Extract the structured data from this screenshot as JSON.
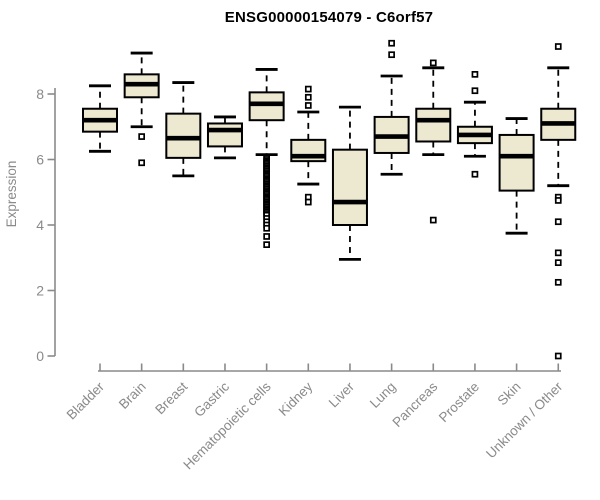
{
  "chart_data": {
    "type": "boxplot",
    "title": "ENSG00000154079 - C6orf57",
    "ylabel": "Expression",
    "xlabel": "",
    "ylim": [
      0,
      9.8
    ],
    "yticks": [
      0,
      2,
      4,
      6,
      8
    ],
    "grid": false,
    "legend": "none",
    "box_fill_color": "#EDE8D0",
    "axis_color": "#8a8a8a",
    "categories": [
      "Bladder",
      "Brain",
      "Breast",
      "Gastric",
      "Hematopoietic cells",
      "Kidney",
      "Liver",
      "Lung",
      "Pancreas",
      "Prostate",
      "Skin",
      "Unknown / Other"
    ],
    "boxes": [
      {
        "category": "Bladder",
        "whisker_low": 6.25,
        "q1": 6.85,
        "median": 7.2,
        "q3": 7.55,
        "whisker_high": 8.25,
        "outliers": []
      },
      {
        "category": "Brain",
        "whisker_low": 7.0,
        "q1": 7.9,
        "median": 8.3,
        "q3": 8.6,
        "whisker_high": 9.25,
        "outliers": [
          6.7,
          5.9
        ]
      },
      {
        "category": "Breast",
        "whisker_low": 5.5,
        "q1": 6.05,
        "median": 6.65,
        "q3": 7.4,
        "whisker_high": 8.35,
        "outliers": []
      },
      {
        "category": "Gastric",
        "whisker_low": 6.05,
        "q1": 6.4,
        "median": 6.9,
        "q3": 7.1,
        "whisker_high": 7.3,
        "outliers": []
      },
      {
        "category": "Hematopoietic cells",
        "whisker_low": 6.15,
        "q1": 7.2,
        "median": 7.7,
        "q3": 8.05,
        "whisker_high": 8.75,
        "outliers": [
          6.05,
          6.0,
          5.95,
          5.9,
          5.85,
          5.8,
          5.75,
          5.7,
          5.65,
          5.6,
          5.55,
          5.5,
          5.45,
          5.4,
          5.35,
          5.3,
          5.25,
          5.2,
          5.15,
          5.1,
          5.05,
          5.0,
          4.95,
          4.9,
          4.85,
          4.8,
          4.75,
          4.7,
          4.65,
          4.6,
          4.55,
          4.5,
          4.45,
          4.4,
          4.35,
          4.3,
          4.2,
          4.1,
          4.0,
          3.9,
          3.65,
          3.4
        ]
      },
      {
        "category": "Kidney",
        "whisker_low": 5.25,
        "q1": 5.95,
        "median": 6.1,
        "q3": 6.6,
        "whisker_high": 7.45,
        "outliers": [
          8.15,
          7.9,
          7.65,
          4.85,
          4.7
        ]
      },
      {
        "category": "Liver",
        "whisker_low": 2.95,
        "q1": 4.0,
        "median": 4.7,
        "q3": 6.3,
        "whisker_high": 7.6,
        "outliers": []
      },
      {
        "category": "Lung",
        "whisker_low": 5.55,
        "q1": 6.2,
        "median": 6.7,
        "q3": 7.3,
        "whisker_high": 8.55,
        "outliers": [
          9.55,
          9.2
        ]
      },
      {
        "category": "Pancreas",
        "whisker_low": 6.15,
        "q1": 6.55,
        "median": 7.2,
        "q3": 7.55,
        "whisker_high": 8.8,
        "outliers": [
          8.95,
          4.15
        ]
      },
      {
        "category": "Prostate",
        "whisker_low": 6.1,
        "q1": 6.5,
        "median": 6.75,
        "q3": 7.0,
        "whisker_high": 7.75,
        "outliers": [
          8.6,
          8.1,
          5.55
        ]
      },
      {
        "category": "Skin",
        "whisker_low": 3.75,
        "q1": 5.05,
        "median": 6.1,
        "q3": 6.75,
        "whisker_high": 7.25,
        "outliers": []
      },
      {
        "category": "Unknown / Other",
        "whisker_low": 5.2,
        "q1": 6.6,
        "median": 7.1,
        "q3": 7.55,
        "whisker_high": 8.8,
        "outliers": [
          9.45,
          4.85,
          4.75,
          4.1,
          3.15,
          2.85,
          2.25,
          0.0
        ]
      }
    ]
  }
}
